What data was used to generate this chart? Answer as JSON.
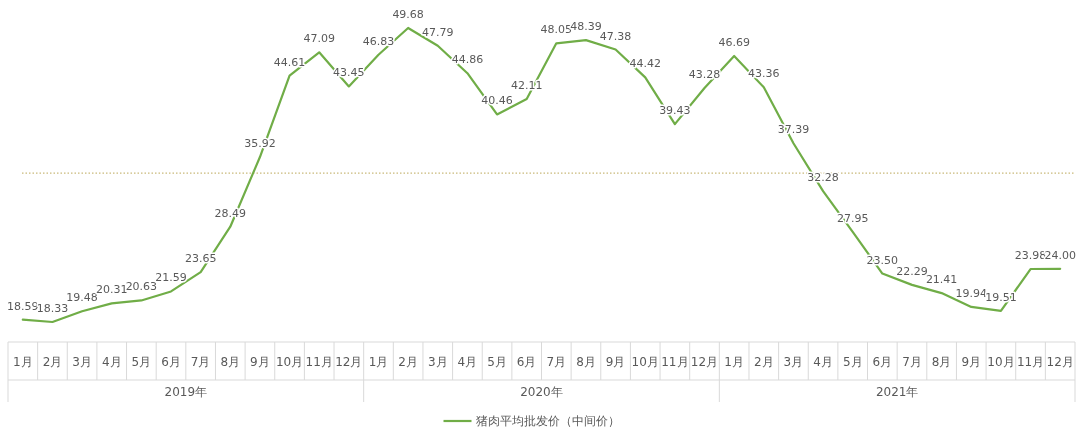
{
  "chart_data": {
    "type": "line",
    "categories": [
      "1月",
      "2月",
      "3月",
      "4月",
      "5月",
      "6月",
      "7月",
      "8月",
      "9月",
      "10月",
      "11月",
      "12月",
      "1月",
      "2月",
      "3月",
      "4月",
      "5月",
      "6月",
      "7月",
      "8月",
      "9月",
      "10月",
      "11月",
      "12月",
      "1月",
      "2月",
      "3月",
      "4月",
      "5月",
      "6月",
      "7月",
      "8月",
      "9月",
      "10月",
      "11月",
      "12月"
    ],
    "series": [
      {
        "name": "猪肉平均批发价（中间价）",
        "color": "#70ad47",
        "values": [
          18.59,
          18.33,
          19.48,
          20.31,
          20.63,
          21.59,
          23.65,
          28.49,
          35.92,
          44.61,
          47.09,
          43.45,
          46.83,
          49.68,
          47.79,
          44.86,
          40.46,
          42.11,
          48.05,
          48.39,
          47.38,
          44.42,
          39.43,
          43.28,
          46.69,
          43.36,
          37.39,
          32.28,
          27.95,
          23.5,
          22.29,
          21.41,
          19.94,
          19.51,
          23.98,
          24.0
        ],
        "value_labels": [
          "18.59",
          "18.33",
          "19.48",
          "20.31",
          "20.63",
          "21.59",
          "23.65",
          "28.49",
          "35.92",
          "44.61",
          "47.09",
          "43.45",
          "46.83",
          "49.68",
          "47.79",
          "44.86",
          "40.46",
          "42.11",
          "48.05",
          "48.39",
          "47.38",
          "44.42",
          "39.43",
          "43.28",
          "46.69",
          "43.36",
          "37.39",
          "32.28",
          "27.95",
          "23.50",
          "22.29",
          "21.41",
          "19.94",
          "19.51",
          "23.98",
          "24.00"
        ]
      }
    ],
    "annotations": [
      "2019年",
      "2020年",
      "2021年"
    ],
    "ref_lines": [
      {
        "axis": "y",
        "value": 34.2,
        "color": "#c9b97a",
        "line_style": "dotted"
      }
    ],
    "legend": "bottom",
    "marker": "none",
    "line_style": "solid",
    "grid": false
  }
}
